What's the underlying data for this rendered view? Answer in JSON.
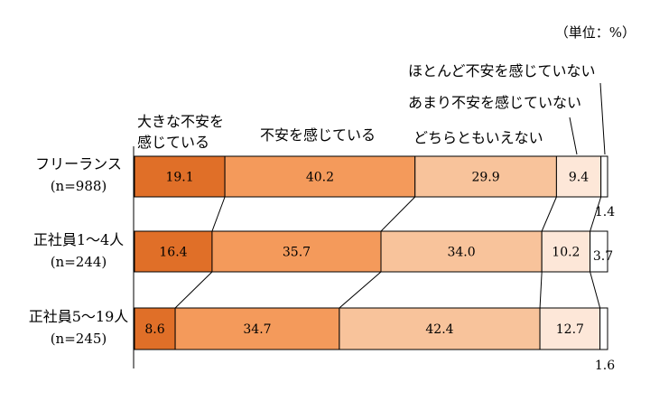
{
  "chart_data": {
    "type": "bar",
    "orientation": "horizontal",
    "stacked": true,
    "percent": true,
    "unit_label": "（単位：%）",
    "categories": [
      {
        "label_line1": "フリーランス",
        "label_line2": "(n=988)"
      },
      {
        "label_line1": "正社員1～4人",
        "label_line2": "(n=244)"
      },
      {
        "label_line1": "正社員5～19人",
        "label_line2": "(n=245)"
      }
    ],
    "series": [
      {
        "name_line1": "大きな不安を",
        "name_line2": "感じている",
        "color": "#E06F28",
        "values": [
          19.1,
          16.4,
          8.6
        ],
        "labels": [
          "19.1",
          "16.4",
          "8.6"
        ]
      },
      {
        "name_line1": "不安を感じている",
        "name_line2": "",
        "color": "#F49A5B",
        "values": [
          40.2,
          35.7,
          34.7
        ],
        "labels": [
          "40.2",
          "35.7",
          "34.7"
        ]
      },
      {
        "name_line1": "どちらともいえない",
        "name_line2": "",
        "color": "#F8C39B",
        "values": [
          29.9,
          34.0,
          42.4
        ],
        "labels": [
          "29.9",
          "34.0",
          "42.4"
        ]
      },
      {
        "name_line1": "あまり不安を感じていない",
        "name_line2": "",
        "color": "#FDE7D8",
        "values": [
          9.4,
          10.2,
          12.7
        ],
        "labels": [
          "9.4",
          "10.2",
          "12.7"
        ]
      },
      {
        "name_line1": "ほとんど不安を感じていない",
        "name_line2": "",
        "color": "#FFFFFF",
        "values": [
          1.4,
          3.7,
          1.6
        ],
        "labels": [
          "1.4",
          "3.7",
          "1.6"
        ]
      }
    ],
    "xlim": [
      0,
      100
    ],
    "grid": false,
    "legend": "labels above bars with leader lines"
  }
}
